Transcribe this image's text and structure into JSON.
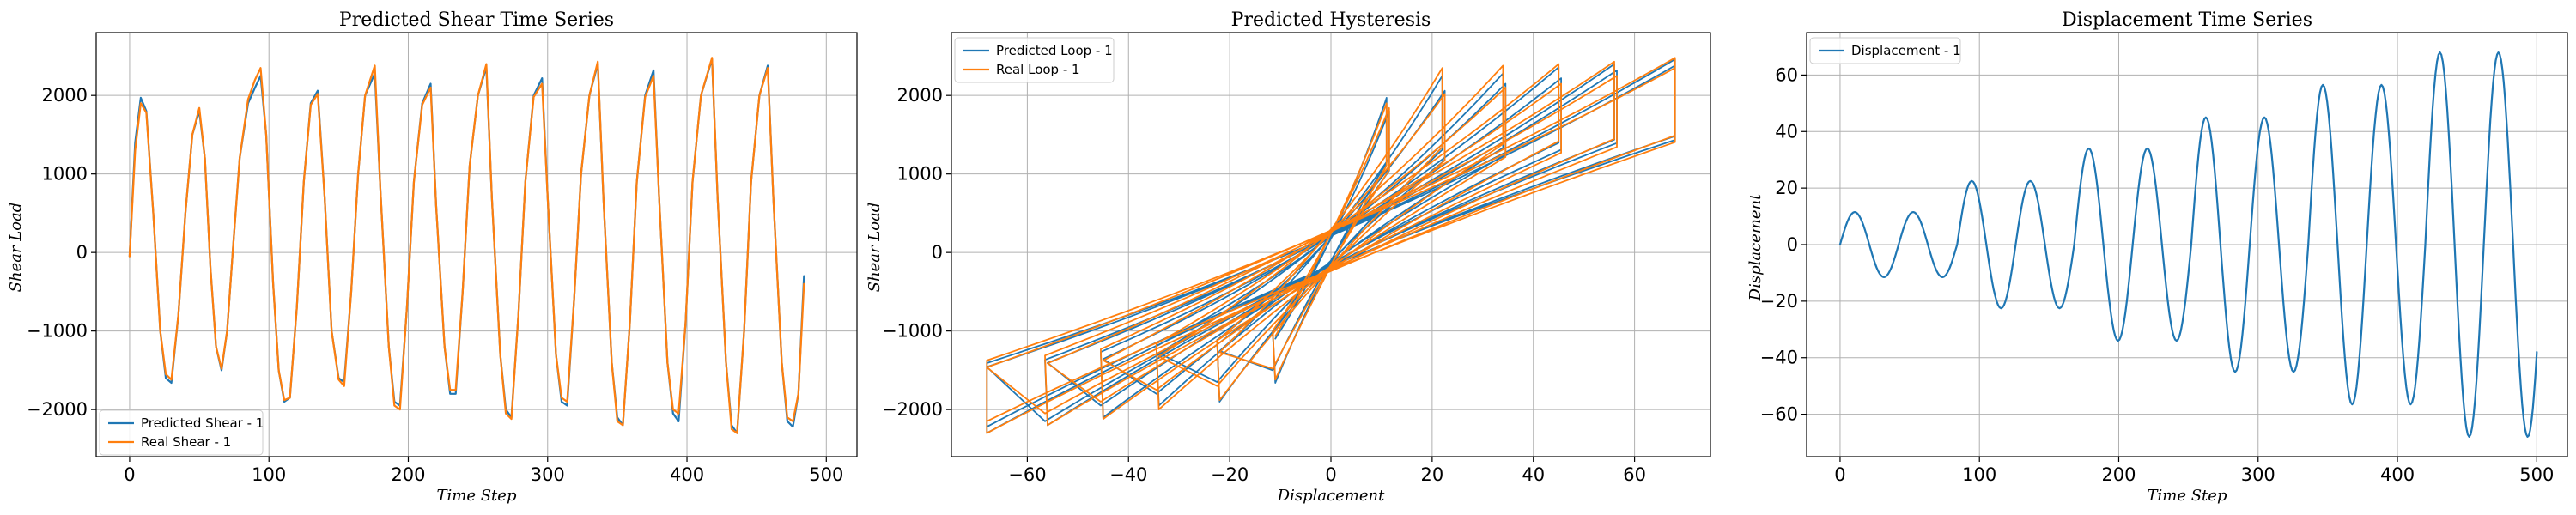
{
  "colors": {
    "blue": "#1f77b4",
    "orange": "#ff7f0e"
  },
  "chart_data": [
    {
      "type": "line",
      "title": "Predicted Shear Time Series",
      "xlabel": "Time Step",
      "ylabel": "Shear Load",
      "xlim": [
        -24,
        522
      ],
      "ylim": [
        -2600,
        2800
      ],
      "xticks": [
        0,
        100,
        200,
        300,
        400,
        500
      ],
      "yticks": [
        -2000,
        -1000,
        0,
        1000,
        2000
      ],
      "grid": true,
      "legend_position": "lower-left",
      "series": [
        {
          "name": "Predicted Shear - 1",
          "color": "#1f77b4",
          "points": [
            [
              0,
              -50
            ],
            [
              4,
              1400
            ],
            [
              8,
              1970
            ],
            [
              12,
              1800
            ],
            [
              17,
              500
            ],
            [
              22,
              -1000
            ],
            [
              26,
              -1600
            ],
            [
              30,
              -1660
            ],
            [
              35,
              -800
            ],
            [
              40,
              500
            ],
            [
              45,
              1500
            ],
            [
              50,
              1800
            ],
            [
              54,
              1200
            ],
            [
              58,
              -200
            ],
            [
              62,
              -1200
            ],
            [
              66,
              -1500
            ],
            [
              70,
              -1000
            ],
            [
              74,
              0
            ],
            [
              79,
              1200
            ],
            [
              85,
              1900
            ],
            [
              90,
              2100
            ],
            [
              94,
              2250
            ],
            [
              98,
              1500
            ],
            [
              103,
              -400
            ],
            [
              107,
              -1500
            ],
            [
              111,
              -1900
            ],
            [
              115,
              -1850
            ],
            [
              120,
              -700
            ],
            [
              125,
              900
            ],
            [
              130,
              1900
            ],
            [
              135,
              2060
            ],
            [
              140,
              700
            ],
            [
              145,
              -1000
            ],
            [
              150,
              -1600
            ],
            [
              154,
              -1650
            ],
            [
              159,
              -500
            ],
            [
              164,
              1000
            ],
            [
              169,
              2000
            ],
            [
              176,
              2280
            ],
            [
              180,
              800
            ],
            [
              186,
              -1200
            ],
            [
              190,
              -1900
            ],
            [
              194,
              -1950
            ],
            [
              199,
              -700
            ],
            [
              204,
              900
            ],
            [
              210,
              1900
            ],
            [
              216,
              2150
            ],
            [
              220,
              600
            ],
            [
              226,
              -1200
            ],
            [
              230,
              -1800
            ],
            [
              234,
              -1800
            ],
            [
              239,
              -500
            ],
            [
              244,
              1100
            ],
            [
              250,
              2000
            ],
            [
              256,
              2360
            ],
            [
              260,
              700
            ],
            [
              266,
              -1300
            ],
            [
              270,
              -2000
            ],
            [
              274,
              -2100
            ],
            [
              279,
              -800
            ],
            [
              284,
              900
            ],
            [
              290,
              2000
            ],
            [
              296,
              2220
            ],
            [
              300,
              700
            ],
            [
              306,
              -1300
            ],
            [
              310,
              -1900
            ],
            [
              314,
              -1950
            ],
            [
              319,
              -600
            ],
            [
              324,
              1000
            ],
            [
              330,
              2000
            ],
            [
              336,
              2400
            ],
            [
              340,
              700
            ],
            [
              346,
              -1400
            ],
            [
              350,
              -2100
            ],
            [
              354,
              -2200
            ],
            [
              359,
              -900
            ],
            [
              364,
              900
            ],
            [
              370,
              2000
            ],
            [
              376,
              2320
            ],
            [
              380,
              700
            ],
            [
              386,
              -1400
            ],
            [
              390,
              -2050
            ],
            [
              394,
              -2150
            ],
            [
              399,
              -900
            ],
            [
              404,
              900
            ],
            [
              410,
              2000
            ],
            [
              418,
              2460
            ],
            [
              422,
              700
            ],
            [
              428,
              -1400
            ],
            [
              432,
              -2200
            ],
            [
              436,
              -2300
            ],
            [
              441,
              -1000
            ],
            [
              446,
              900
            ],
            [
              452,
              2000
            ],
            [
              458,
              2380
            ],
            [
              462,
              700
            ],
            [
              468,
              -1400
            ],
            [
              472,
              -2150
            ],
            [
              476,
              -2220
            ],
            [
              480,
              -1800
            ],
            [
              484,
              -300
            ]
          ]
        },
        {
          "name": "Real Shear - 1",
          "color": "#ff7f0e",
          "points": [
            [
              0,
              -50
            ],
            [
              4,
              1300
            ],
            [
              8,
              1900
            ],
            [
              12,
              1780
            ],
            [
              17,
              500
            ],
            [
              22,
              -1000
            ],
            [
              26,
              -1550
            ],
            [
              30,
              -1620
            ],
            [
              35,
              -800
            ],
            [
              40,
              500
            ],
            [
              45,
              1500
            ],
            [
              50,
              1840
            ],
            [
              54,
              1200
            ],
            [
              58,
              -200
            ],
            [
              62,
              -1200
            ],
            [
              66,
              -1480
            ],
            [
              70,
              -1000
            ],
            [
              74,
              0
            ],
            [
              79,
              1200
            ],
            [
              85,
              1950
            ],
            [
              90,
              2200
            ],
            [
              94,
              2350
            ],
            [
              98,
              1500
            ],
            [
              103,
              -400
            ],
            [
              107,
              -1500
            ],
            [
              111,
              -1880
            ],
            [
              115,
              -1850
            ],
            [
              120,
              -700
            ],
            [
              125,
              900
            ],
            [
              130,
              1880
            ],
            [
              135,
              2020
            ],
            [
              140,
              700
            ],
            [
              145,
              -1000
            ],
            [
              150,
              -1620
            ],
            [
              154,
              -1700
            ],
            [
              159,
              -500
            ],
            [
              164,
              1000
            ],
            [
              169,
              2000
            ],
            [
              176,
              2380
            ],
            [
              180,
              800
            ],
            [
              186,
              -1200
            ],
            [
              190,
              -1950
            ],
            [
              194,
              -2000
            ],
            [
              199,
              -700
            ],
            [
              204,
              900
            ],
            [
              210,
              1880
            ],
            [
              216,
              2100
            ],
            [
              220,
              600
            ],
            [
              226,
              -1200
            ],
            [
              230,
              -1750
            ],
            [
              234,
              -1750
            ],
            [
              239,
              -500
            ],
            [
              244,
              1100
            ],
            [
              250,
              2000
            ],
            [
              256,
              2400
            ],
            [
              260,
              700
            ],
            [
              266,
              -1300
            ],
            [
              270,
              -2050
            ],
            [
              274,
              -2120
            ],
            [
              279,
              -800
            ],
            [
              284,
              900
            ],
            [
              290,
              1980
            ],
            [
              296,
              2150
            ],
            [
              300,
              700
            ],
            [
              306,
              -1300
            ],
            [
              310,
              -1850
            ],
            [
              314,
              -1900
            ],
            [
              319,
              -600
            ],
            [
              324,
              1000
            ],
            [
              330,
              2000
            ],
            [
              336,
              2430
            ],
            [
              340,
              700
            ],
            [
              346,
              -1400
            ],
            [
              350,
              -2150
            ],
            [
              354,
              -2200
            ],
            [
              359,
              -900
            ],
            [
              364,
              900
            ],
            [
              370,
              1980
            ],
            [
              376,
              2250
            ],
            [
              380,
              700
            ],
            [
              386,
              -1400
            ],
            [
              390,
              -2000
            ],
            [
              394,
              -2050
            ],
            [
              399,
              -900
            ],
            [
              404,
              900
            ],
            [
              410,
              2000
            ],
            [
              418,
              2480
            ],
            [
              422,
              700
            ],
            [
              428,
              -1400
            ],
            [
              432,
              -2250
            ],
            [
              436,
              -2300
            ],
            [
              441,
              -1000
            ],
            [
              446,
              900
            ],
            [
              452,
              2000
            ],
            [
              458,
              2350
            ],
            [
              462,
              700
            ],
            [
              468,
              -1400
            ],
            [
              472,
              -2100
            ],
            [
              476,
              -2150
            ],
            [
              480,
              -1800
            ],
            [
              484,
              -400
            ]
          ]
        }
      ]
    },
    {
      "type": "line",
      "title": "Predicted Hysteresis",
      "xlabel": "Displacement",
      "ylabel": "Shear Load",
      "xlim": [
        -75,
        75
      ],
      "ylim": [
        -2600,
        2800
      ],
      "xticks": [
        -60,
        -40,
        -20,
        0,
        20,
        40,
        60
      ],
      "yticks": [
        -2000,
        -1000,
        0,
        1000,
        2000
      ],
      "grid": true,
      "legend_position": "top-left",
      "series": [
        {
          "name": "Predicted Loop - 1",
          "color": "#1f77b4",
          "loops": [
            {
              "amp": 11,
              "pos": 1970,
              "neg": -1660
            },
            {
              "amp": 11.5,
              "pos": 1800,
              "neg": -1500
            },
            {
              "amp": 22,
              "pos": 2250,
              "neg": -1900
            },
            {
              "amp": 22.5,
              "pos": 2060,
              "neg": -1650
            },
            {
              "amp": 34,
              "pos": 2280,
              "neg": -1950
            },
            {
              "amp": 34.5,
              "pos": 2150,
              "neg": -1800
            },
            {
              "amp": 45,
              "pos": 2360,
              "neg": -2100
            },
            {
              "amp": 45.5,
              "pos": 2220,
              "neg": -1950
            },
            {
              "amp": 56,
              "pos": 2400,
              "neg": -2200
            },
            {
              "amp": 56.5,
              "pos": 2320,
              "neg": -2150
            },
            {
              "amp": 68,
              "pos": 2460,
              "neg": -2300
            },
            {
              "amp": 68,
              "pos": 2380,
              "neg": -2220
            }
          ]
        },
        {
          "name": "Real Loop - 1",
          "color": "#ff7f0e",
          "loops": [
            {
              "amp": 11,
              "pos": 1900,
              "neg": -1620
            },
            {
              "amp": 11.5,
              "pos": 1840,
              "neg": -1480
            },
            {
              "amp": 22,
              "pos": 2350,
              "neg": -1880
            },
            {
              "amp": 22.5,
              "pos": 2020,
              "neg": -1700
            },
            {
              "amp": 34,
              "pos": 2380,
              "neg": -2000
            },
            {
              "amp": 34.5,
              "pos": 2100,
              "neg": -1750
            },
            {
              "amp": 45,
              "pos": 2400,
              "neg": -2120
            },
            {
              "amp": 45.5,
              "pos": 2150,
              "neg": -1900
            },
            {
              "amp": 56,
              "pos": 2430,
              "neg": -2200
            },
            {
              "amp": 56.5,
              "pos": 2250,
              "neg": -2050
            },
            {
              "amp": 68,
              "pos": 2480,
              "neg": -2300
            },
            {
              "amp": 68,
              "pos": 2350,
              "neg": -2150
            }
          ]
        }
      ]
    },
    {
      "type": "line",
      "title": "Displacement Time Series",
      "xlabel": "Time Step",
      "ylabel": "Displacement",
      "xlim": [
        -24,
        522
      ],
      "ylim": [
        -75,
        75
      ],
      "xticks": [
        0,
        100,
        200,
        300,
        400,
        500
      ],
      "yticks": [
        -60,
        -40,
        -20,
        0,
        20,
        40,
        60
      ],
      "grid": true,
      "legend_position": "top-left",
      "series": [
        {
          "name": "Displacement - 1",
          "color": "#1f77b4",
          "cycles": [
            {
              "t_start": 0,
              "t_end": 42,
              "amp": 11.5
            },
            {
              "t_start": 42,
              "t_end": 84,
              "amp": 11.5
            },
            {
              "t_start": 84,
              "t_end": 126,
              "amp": 22.5
            },
            {
              "t_start": 126,
              "t_end": 168,
              "amp": 22.5
            },
            {
              "t_start": 168,
              "t_end": 210,
              "amp": 34
            },
            {
              "t_start": 210,
              "t_end": 252,
              "amp": 34
            },
            {
              "t_start": 252,
              "t_end": 294,
              "amp": 45
            },
            {
              "t_start": 294,
              "t_end": 336,
              "amp": 45
            },
            {
              "t_start": 336,
              "t_end": 378,
              "amp": 56.5
            },
            {
              "t_start": 378,
              "t_end": 420,
              "amp": 56.5
            },
            {
              "t_start": 420,
              "t_end": 462,
              "amp": 68
            },
            {
              "t_start": 462,
              "t_end": 500,
              "amp": 68
            }
          ],
          "end_value": -38
        }
      ]
    }
  ]
}
